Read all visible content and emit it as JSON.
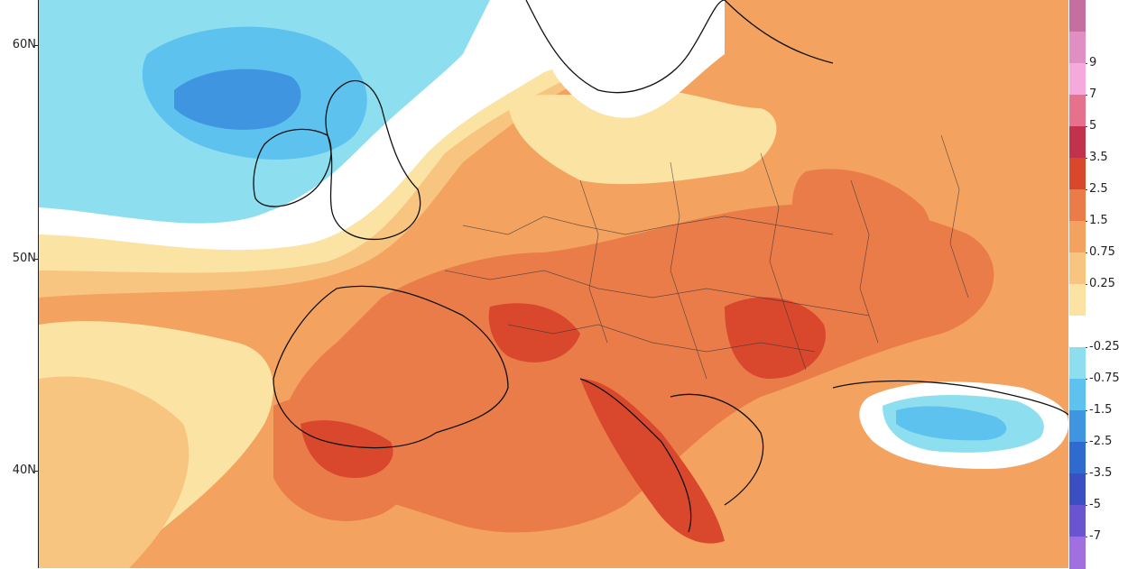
{
  "map": {
    "latitude_labels": [
      "60N",
      "50N",
      "40N"
    ],
    "colors": {
      "strong_warm": "#d9482d",
      "warm": "#ea7c49",
      "mild_warm": "#f3a25f",
      "light_warm": "#f8c580",
      "pale_yellow": "#fbe3a3",
      "neutral": "#ffffff",
      "light_cool": "#8ddff0",
      "cool": "#5ec2ee",
      "strong_cool": "#3f95e0"
    }
  },
  "legend": {
    "entries": [
      {
        "label": "",
        "color": "#c46fa0"
      },
      {
        "label": "9",
        "color": "#e18ec2"
      },
      {
        "label": "7",
        "color": "#f6a9db"
      },
      {
        "label": "5",
        "color": "#e6718d"
      },
      {
        "label": "3.5",
        "color": "#c2324c"
      },
      {
        "label": "2.5",
        "color": "#d9482d"
      },
      {
        "label": "1.5",
        "color": "#ea7c49"
      },
      {
        "label": "0.75",
        "color": "#f3a25f"
      },
      {
        "label": "0.25",
        "color": "#f8c580"
      },
      {
        "label": "",
        "color": "#fbe3a3"
      },
      {
        "label": "-0.25",
        "color": "#ffffff"
      },
      {
        "label": "-0.75",
        "color": "#8ddff0"
      },
      {
        "label": "-1.5",
        "color": "#5ec2ee"
      },
      {
        "label": "-2.5",
        "color": "#3f95e0"
      },
      {
        "label": "-3.5",
        "color": "#2f6bcf"
      },
      {
        "label": "-5",
        "color": "#3a4fc2"
      },
      {
        "label": "-7",
        "color": "#6a54d0"
      },
      {
        "label": "",
        "color": "#a070e0"
      }
    ]
  }
}
